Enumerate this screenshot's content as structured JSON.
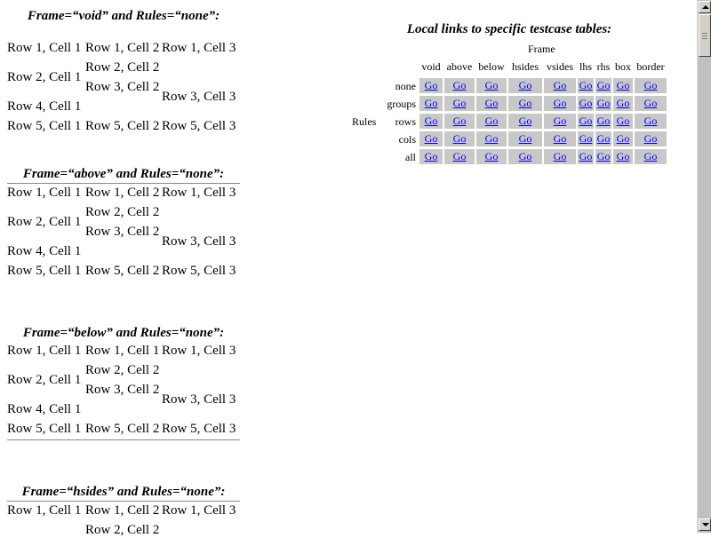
{
  "sections": [
    {
      "caption": "Frame=“void” and Rules=“none”:",
      "rows": [
        [
          "Row 1, Cell 1",
          "Row 1, Cell 2",
          "Row 1, Cell 3"
        ],
        [
          "Row 2, Cell 1",
          "Row 2, Cell 2"
        ],
        [
          "Row 3, Cell 2",
          "Row 3, Cell 3"
        ],
        [
          "Row 4, Cell 1"
        ],
        [
          "Row 5, Cell 1",
          "Row 5, Cell 2",
          "Row 5, Cell 3"
        ]
      ]
    },
    {
      "caption": "Frame=“above” and Rules=“none”:",
      "rows": [
        [
          "Row 1, Cell 1",
          "Row 1, Cell 2",
          "Row 1, Cell 3"
        ],
        [
          "Row 2, Cell 1",
          "Row 2, Cell 2"
        ],
        [
          "Row 3, Cell 2",
          "Row 3, Cell 3"
        ],
        [
          "Row 4, Cell 1"
        ],
        [
          "Row 5, Cell 1",
          "Row 5, Cell 2",
          "Row 5, Cell 3"
        ]
      ]
    },
    {
      "caption": "Frame=“below” and Rules=“none”:",
      "rows": [
        [
          "Row 1, Cell 1",
          "Row 1, Cell 1",
          "Row 1, Cell 3"
        ],
        [
          "Row 2, Cell 1",
          "Row 2, Cell 2"
        ],
        [
          "Row 3, Cell 2",
          "Row 3, Cell 3"
        ],
        [
          "Row 4, Cell 1"
        ],
        [
          "Row 5, Cell 1",
          "Row 5, Cell 2",
          "Row 5, Cell 3"
        ]
      ]
    },
    {
      "caption": "Frame=“hsides” and Rules=“none”:",
      "rows": [
        [
          "Row 1, Cell 1",
          "Row 1, Cell 2",
          "Row 1, Cell 3"
        ],
        [
          "",
          "Row 2, Cell 2"
        ]
      ]
    }
  ],
  "links": {
    "caption": "Local links to specific testcase tables:",
    "frame_label": "Frame",
    "rules_label": "Rules",
    "frames": [
      "void",
      "above",
      "below",
      "hsides",
      "vsides",
      "lhs",
      "rhs",
      "box",
      "border"
    ],
    "rules": [
      "none",
      "groups",
      "rows",
      "cols",
      "all"
    ],
    "go_label": "Go"
  },
  "colors": {
    "link": "#0000ee",
    "go_cell_bg": "#c8c8c8",
    "scrollbar": "#c0c0c0"
  },
  "icons": {
    "scroll_up": "arrow-up-icon",
    "scroll_down": "arrow-down-icon"
  }
}
